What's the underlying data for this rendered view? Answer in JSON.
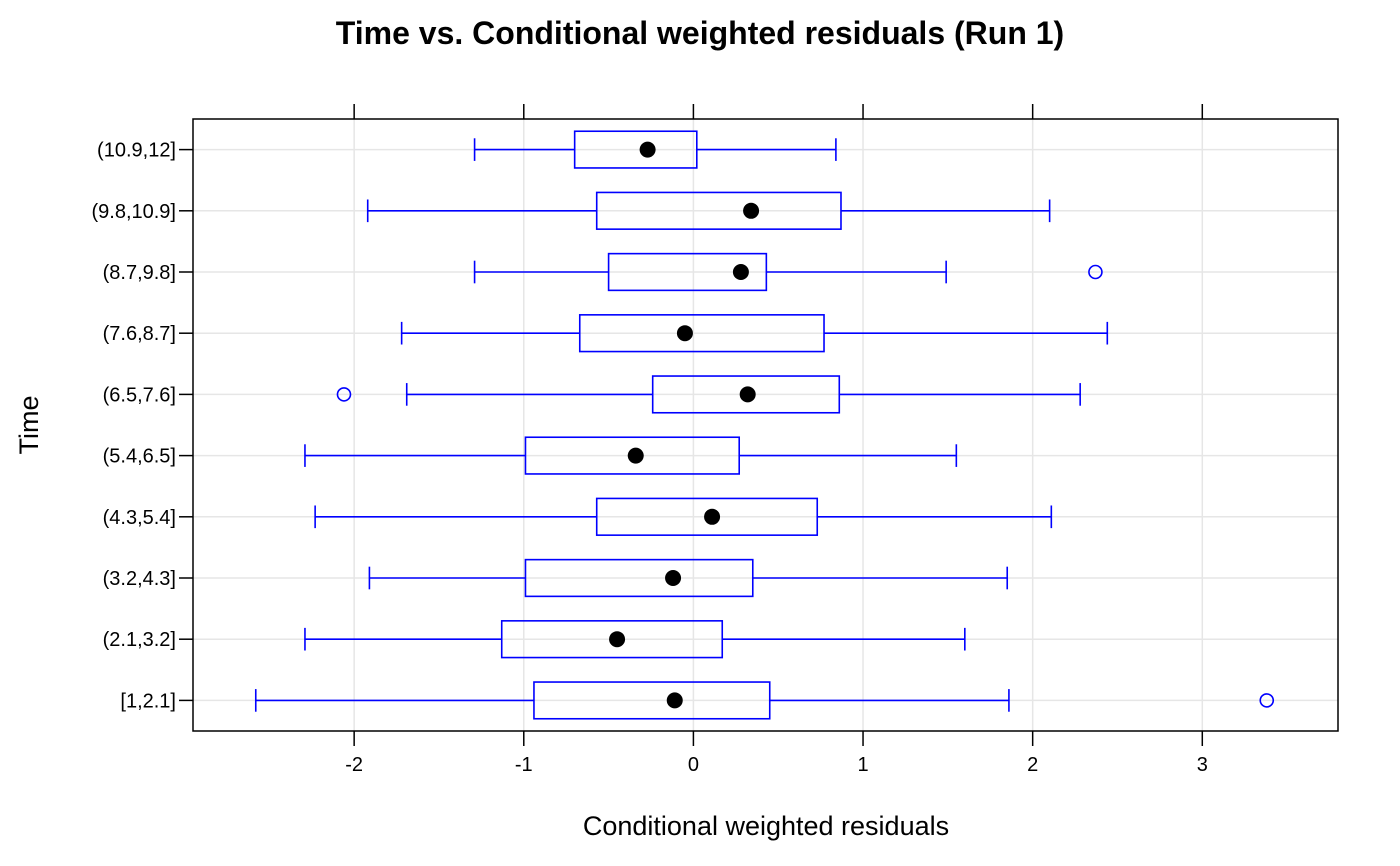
{
  "chart_data": {
    "type": "boxplot",
    "orientation": "horizontal",
    "title": "Time vs. Conditional weighted residuals (Run 1)",
    "xlabel": "Conditional weighted residuals",
    "ylabel": "Time",
    "xlim": [
      -2.95,
      3.8
    ],
    "xticks": [
      -2,
      -1,
      0,
      1,
      2,
      3
    ],
    "grid": true,
    "colors": {
      "box": "#0000ff",
      "median": "#000000",
      "grid": "#e6e6e6",
      "frame": "#000000"
    },
    "categories": [
      "[1,2.1]",
      "(2.1,3.2]",
      "(3.2,4.3]",
      "(4.3,5.4]",
      "(5.4,6.5]",
      "(6.5,7.6]",
      "(7.6,8.7]",
      "(8.7,9.8]",
      "(9.8,10.9]",
      "(10.9,12]"
    ],
    "boxes": [
      {
        "lower_whisker": -2.58,
        "q1": -0.94,
        "median": -0.11,
        "q3": 0.45,
        "upper_whisker": 1.86,
        "outliers": [
          3.38
        ]
      },
      {
        "lower_whisker": -2.29,
        "q1": -1.13,
        "median": -0.45,
        "q3": 0.17,
        "upper_whisker": 1.6,
        "outliers": []
      },
      {
        "lower_whisker": -1.91,
        "q1": -0.99,
        "median": -0.12,
        "q3": 0.35,
        "upper_whisker": 1.85,
        "outliers": []
      },
      {
        "lower_whisker": -2.23,
        "q1": -0.57,
        "median": 0.11,
        "q3": 0.73,
        "upper_whisker": 2.11,
        "outliers": []
      },
      {
        "lower_whisker": -2.29,
        "q1": -0.99,
        "median": -0.34,
        "q3": 0.27,
        "upper_whisker": 1.55,
        "outliers": []
      },
      {
        "lower_whisker": -1.69,
        "q1": -0.24,
        "median": 0.32,
        "q3": 0.86,
        "upper_whisker": 2.28,
        "outliers": [
          -2.06
        ]
      },
      {
        "lower_whisker": -1.72,
        "q1": -0.67,
        "median": -0.05,
        "q3": 0.77,
        "upper_whisker": 2.44,
        "outliers": []
      },
      {
        "lower_whisker": -1.29,
        "q1": -0.5,
        "median": 0.28,
        "q3": 0.43,
        "upper_whisker": 1.49,
        "outliers": [
          2.37
        ]
      },
      {
        "lower_whisker": -1.92,
        "q1": -0.57,
        "median": 0.34,
        "q3": 0.87,
        "upper_whisker": 2.1,
        "outliers": []
      },
      {
        "lower_whisker": -1.29,
        "q1": -0.7,
        "median": -0.27,
        "q3": 0.02,
        "upper_whisker": 0.84,
        "outliers": []
      }
    ]
  }
}
